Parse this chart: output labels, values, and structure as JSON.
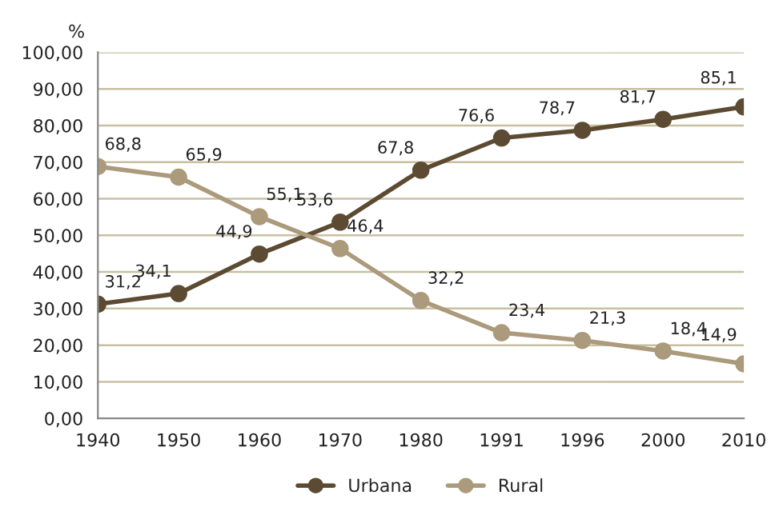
{
  "chart_data": {
    "type": "line",
    "ylabel": "%",
    "categories": [
      "1940",
      "1950",
      "1960",
      "1970",
      "1980",
      "1991",
      "1996",
      "2000",
      "2010"
    ],
    "series": [
      {
        "name": "Urbana",
        "color": "#5c4b32",
        "values": [
          31.2,
          34.1,
          44.9,
          53.6,
          67.8,
          76.6,
          78.7,
          81.7,
          85.1
        ],
        "value_labels": [
          "31,2",
          "34,1",
          "44,9",
          "53,6",
          "67,8",
          "76,6",
          "78,7",
          "81,7",
          "85,1"
        ]
      },
      {
        "name": "Rural",
        "color": "#ab9a7b",
        "values": [
          68.8,
          65.9,
          55.1,
          46.4,
          32.2,
          23.4,
          21.3,
          18.4,
          14.9
        ],
        "value_labels": [
          "68,8",
          "65,9",
          "55,1",
          "46,4",
          "32,2",
          "23,4",
          "21,3",
          "18,4",
          "14,9"
        ]
      }
    ],
    "ylim": [
      0,
      100
    ],
    "yticks": [
      {
        "value": 0,
        "label": "0,00"
      },
      {
        "value": 10,
        "label": "10,00"
      },
      {
        "value": 20,
        "label": "20,00"
      },
      {
        "value": 30,
        "label": "30,00"
      },
      {
        "value": 40,
        "label": "40,00"
      },
      {
        "value": 50,
        "label": "50,00"
      },
      {
        "value": 60,
        "label": "60,00"
      },
      {
        "value": 70,
        "label": "70,00"
      },
      {
        "value": 80,
        "label": "80,00"
      },
      {
        "value": 90,
        "label": "90,00"
      },
      {
        "value": 100,
        "label": "100,00"
      }
    ],
    "grid": "y",
    "legend": "bottom",
    "marker": "circle",
    "line_style": "solid"
  }
}
